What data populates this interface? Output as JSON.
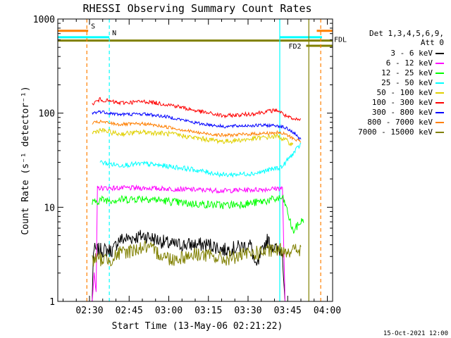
{
  "chart_data": {
    "type": "line",
    "title": "RHESSI Observing Summary Count Rates",
    "xlabel": "Start Time (13-May-06 02:21:22)",
    "ylabel": "Count Rate (s⁻¹ detector⁻¹)",
    "yscale": "log",
    "ylim": [
      1,
      1000
    ],
    "xlim_minutes": [
      -3,
      101
    ],
    "x_unit": "minutes after 02:21:22",
    "y_ticks": [
      {
        "v": 1,
        "label": "1"
      },
      {
        "v": 10,
        "label": "10"
      },
      {
        "v": 100,
        "label": "100"
      },
      {
        "v": 1000,
        "label": "1000"
      }
    ],
    "x_ticks": [
      {
        "t": 9,
        "label": "02:30"
      },
      {
        "t": 24,
        "label": "02:45"
      },
      {
        "t": 39,
        "label": "03:00"
      },
      {
        "t": 54,
        "label": "03:15"
      },
      {
        "t": 69,
        "label": "03:30"
      },
      {
        "t": 84,
        "label": "03:45"
      },
      {
        "t": 99,
        "label": "04:00"
      }
    ],
    "legend_header": [
      "Det 1,3,4,5,6,9,",
      "Att 0"
    ],
    "series": [
      {
        "name": "3 - 6 keV",
        "color": "#000000",
        "noise": 0.18,
        "points": [
          [
            10,
            1
          ],
          [
            10.5,
            3.5
          ],
          [
            18,
            3.5
          ],
          [
            20,
            4.5
          ],
          [
            30,
            5.0
          ],
          [
            40,
            4.0
          ],
          [
            55,
            4.0
          ],
          [
            60,
            3.5
          ],
          [
            70,
            4.0
          ],
          [
            72,
            2.2
          ],
          [
            76,
            4.5
          ],
          [
            80,
            3.5
          ],
          [
            82,
            3.5
          ],
          [
            83,
            1
          ]
        ]
      },
      {
        "name": "6 - 12 keV",
        "color": "#ff00ff",
        "noise": 0.06,
        "points": [
          [
            10,
            1
          ],
          [
            10.8,
            2
          ],
          [
            11.5,
            1.2
          ],
          [
            12,
            16
          ],
          [
            20,
            16
          ],
          [
            30,
            16
          ],
          [
            45,
            15.5
          ],
          [
            60,
            15
          ],
          [
            75,
            15.5
          ],
          [
            82,
            16
          ],
          [
            83,
            1
          ]
        ]
      },
      {
        "name": "12 - 25 keV",
        "color": "#00ff00",
        "noise": 0.1,
        "points": [
          [
            10,
            11
          ],
          [
            13,
            12
          ],
          [
            20,
            12
          ],
          [
            30,
            12.5
          ],
          [
            45,
            11
          ],
          [
            60,
            10.5
          ],
          [
            70,
            11
          ],
          [
            82,
            12.5
          ],
          [
            83,
            11
          ],
          [
            86,
            5.5
          ],
          [
            88,
            6.5
          ],
          [
            90,
            7.5
          ]
        ]
      },
      {
        "name": "25 - 50 keV",
        "color": "#00ffff",
        "noise": 0.06,
        "points": [
          [
            13,
            30
          ],
          [
            20,
            28
          ],
          [
            30,
            29
          ],
          [
            45,
            26
          ],
          [
            60,
            22
          ],
          [
            72,
            23
          ],
          [
            82,
            27
          ],
          [
            84,
            32
          ],
          [
            87,
            40
          ],
          [
            89,
            47
          ]
        ]
      },
      {
        "name": "50 - 100 keV",
        "color": "#e0d000",
        "noise": 0.06,
        "points": [
          [
            10,
            62
          ],
          [
            13,
            66
          ],
          [
            20,
            60
          ],
          [
            30,
            63
          ],
          [
            40,
            60
          ],
          [
            50,
            54
          ],
          [
            60,
            50
          ],
          [
            70,
            53
          ],
          [
            80,
            57
          ],
          [
            83,
            52
          ],
          [
            86,
            46
          ]
        ]
      },
      {
        "name": "100 - 300 keV",
        "color": "#ff0000",
        "noise": 0.05,
        "points": [
          [
            10,
            125
          ],
          [
            13,
            140
          ],
          [
            20,
            128
          ],
          [
            30,
            133
          ],
          [
            40,
            122
          ],
          [
            50,
            105
          ],
          [
            60,
            93
          ],
          [
            70,
            98
          ],
          [
            80,
            108
          ],
          [
            83,
            95
          ],
          [
            86,
            85
          ],
          [
            89,
            85
          ]
        ]
      },
      {
        "name": "300 - 800 keV",
        "color": "#0000ff",
        "noise": 0.04,
        "points": [
          [
            10,
            100
          ],
          [
            13,
            104
          ],
          [
            20,
            97
          ],
          [
            30,
            98
          ],
          [
            40,
            90
          ],
          [
            50,
            78
          ],
          [
            60,
            72
          ],
          [
            70,
            74
          ],
          [
            80,
            74
          ],
          [
            83,
            70
          ],
          [
            86,
            63
          ],
          [
            89,
            52
          ]
        ]
      },
      {
        "name": "800 - 7000 keV",
        "color": "#ff7f00",
        "noise": 0.04,
        "points": [
          [
            10,
            78
          ],
          [
            13,
            81
          ],
          [
            20,
            76
          ],
          [
            30,
            77
          ],
          [
            40,
            70
          ],
          [
            50,
            62
          ],
          [
            60,
            58
          ],
          [
            70,
            60
          ],
          [
            80,
            62
          ],
          [
            83,
            60
          ],
          [
            86,
            54
          ],
          [
            89,
            50
          ]
        ]
      },
      {
        "name": "7000 - 15000 keV",
        "color": "#808000",
        "noise": 0.18,
        "points": [
          [
            10,
            2.8
          ],
          [
            17,
            2.8
          ],
          [
            20,
            3.2
          ],
          [
            30,
            3.8
          ],
          [
            40,
            2.8
          ],
          [
            50,
            3.2
          ],
          [
            60,
            2.8
          ],
          [
            70,
            3.2
          ],
          [
            80,
            3.5
          ],
          [
            89,
            3.5
          ]
        ]
      }
    ],
    "flags": [
      {
        "label": "S",
        "color": "#ff7f00",
        "segments": [
          [
            -3,
            8.5
          ],
          [
            95,
            101
          ]
        ],
        "level": 750
      },
      {
        "label": "N",
        "color": "#00ffff",
        "segments": [
          [
            -3,
            16.5
          ],
          [
            81,
            97
          ]
        ],
        "level": 640
      },
      {
        "label": "FDL",
        "color": "#808000",
        "segments": [
          [
            -3,
            101
          ]
        ],
        "level": 590
      },
      {
        "label": "FD2",
        "color": "#808000",
        "segments": [
          [
            91,
            101
          ]
        ],
        "level": 520
      }
    ],
    "vlines": [
      {
        "t": 8,
        "color": "#ff7f00",
        "dash": true
      },
      {
        "t": 16.5,
        "color": "#00ffff",
        "dash": true
      },
      {
        "t": 81,
        "color": "#00ffff",
        "dash": false
      },
      {
        "t": 92,
        "color": "#808000",
        "dash": false
      },
      {
        "t": 96.5,
        "color": "#ff7f00",
        "dash": true
      }
    ],
    "footer_date": "15-Oct-2021 12:00"
  }
}
